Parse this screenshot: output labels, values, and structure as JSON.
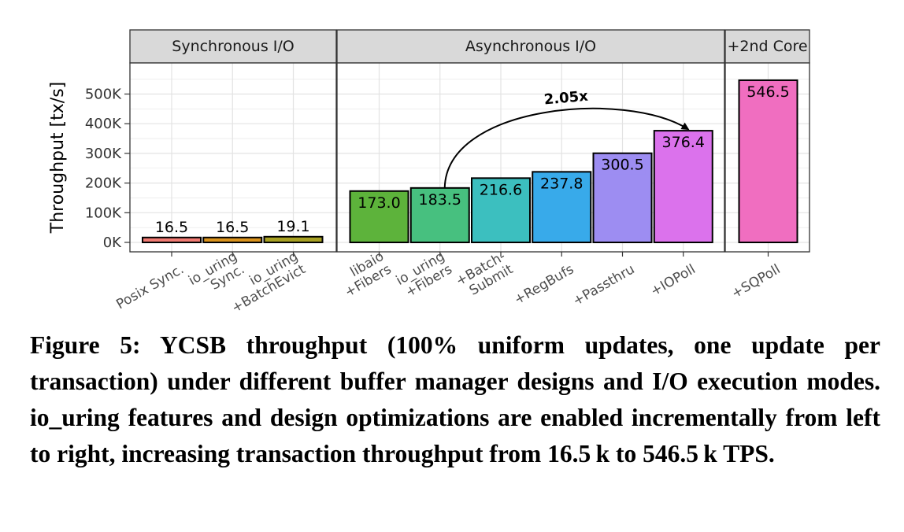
{
  "chart_data": {
    "type": "bar",
    "ylabel": "Throughput [tx/s]",
    "xlabel": "",
    "ylim": [
      0,
      590
    ],
    "y_ticks": [
      {
        "value": 0,
        "label": "0K"
      },
      {
        "value": 100,
        "label": "100K"
      },
      {
        "value": 200,
        "label": "200K"
      },
      {
        "value": 300,
        "label": "300K"
      },
      {
        "value": 400,
        "label": "400K"
      },
      {
        "value": 500,
        "label": "500K"
      }
    ],
    "grid": true,
    "panels": [
      {
        "label": "Synchronous I/O",
        "bars": [
          {
            "category": "Posix Sync.",
            "value": 16.5,
            "label": "16.5",
            "color": "#f07a72"
          },
          {
            "category": "io_uring\nSync.",
            "value": 16.5,
            "label": "16.5",
            "color": "#d9921c"
          },
          {
            "category": "io_uring\n+BatchEvict",
            "value": 19.1,
            "label": "19.1",
            "color": "#a7a022"
          }
        ]
      },
      {
        "label": "Asynchronous I/O",
        "bars": [
          {
            "category": "libaio\n+Fibers",
            "value": 173.0,
            "label": "173.0",
            "color": "#5db33b"
          },
          {
            "category": "io_uring\n+Fibers",
            "value": 183.5,
            "label": "183.5",
            "color": "#47c07f"
          },
          {
            "category": "+Batch-\nSubmit",
            "value": 216.6,
            "label": "216.6",
            "color": "#3cbfbf"
          },
          {
            "category": "+RegBufs",
            "value": 237.8,
            "label": "237.8",
            "color": "#38aaea"
          },
          {
            "category": "+Passthru",
            "value": 300.5,
            "label": "300.5",
            "color": "#9d8df2"
          },
          {
            "category": "+IOPoll",
            "value": 376.4,
            "label": "376.4",
            "color": "#db72ec"
          }
        ]
      },
      {
        "label": "+2nd Core",
        "bars": [
          {
            "category": "+SQPoll",
            "value": 546.5,
            "label": "546.5",
            "color": "#f06ec0"
          }
        ]
      }
    ],
    "annotations": [
      {
        "text": "2.05x",
        "from": "io_uring\n+Fibers",
        "to": "+IOPoll"
      }
    ]
  },
  "caption": "Figure 5: YCSB throughput (100% uniform updates, one update per transaction) under different buffer manager designs and I/O execution modes. io_uring features and design optimizations are enabled incrementally from left to right, increasing transaction throughput from 16.5 k to 546.5 k TPS."
}
